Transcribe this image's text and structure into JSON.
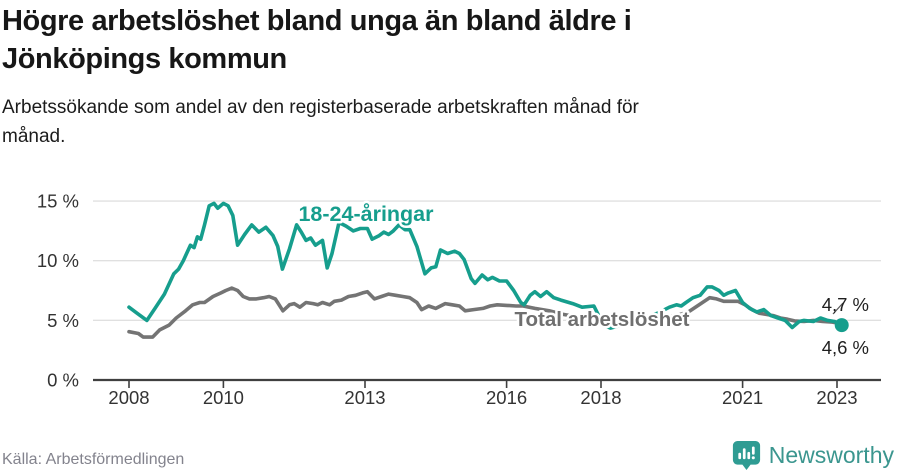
{
  "header": {
    "title_lines": [
      "Högre arbetslöshet bland unga än bland äldre i",
      "Jönköpings kommun"
    ],
    "subtitle_lines": [
      "Arbetssökande som andel av den registerbaserade arbetskraften månad för",
      "månad."
    ]
  },
  "footer": {
    "source": "Källa: Arbetsförmedlingen",
    "brand": "Newsworthy"
  },
  "colors": {
    "youth": "#169E8D",
    "total": "#747474",
    "grid": "#e0e0e0",
    "axis": "#3f3f3f",
    "tick_text": "#333333",
    "end_label_text": "#1f1f1f",
    "brand_bubble": "#2f9c93",
    "brand_text": "#3b968f"
  },
  "chart_data": {
    "type": "line",
    "title": "Högre arbetslöshet bland unga än bland äldre i Jönköpings kommun",
    "subtitle": "Arbetssökande som andel av den registerbaserade arbetskraften månad för månad.",
    "unit": "%",
    "xlabel": "",
    "ylabel": "",
    "ylim": [
      0,
      16
    ],
    "xlim": [
      2007.25,
      2023.9
    ],
    "grid": true,
    "legend_position": "inline-labels",
    "y_ticks": [
      {
        "value": 0,
        "label": "0 %"
      },
      {
        "value": 5,
        "label": "5 %"
      },
      {
        "value": 10,
        "label": "10 %"
      },
      {
        "value": 15,
        "label": "15 %"
      }
    ],
    "x_ticks": [
      {
        "value": 2008,
        "label": "2008"
      },
      {
        "value": 2010,
        "label": "2010"
      },
      {
        "value": 2013,
        "label": "2013"
      },
      {
        "value": 2016,
        "label": "2016"
      },
      {
        "value": 2018,
        "label": "2018"
      },
      {
        "value": 2021,
        "label": "2021"
      },
      {
        "value": 2023,
        "label": "2023"
      }
    ],
    "series": [
      {
        "id": "total",
        "name": "Total arbetslöshet",
        "end_label": "4,7 %",
        "end_value": 4.7,
        "points": [
          [
            2008.0,
            4.05
          ],
          [
            2008.2,
            3.9
          ],
          [
            2008.3,
            3.6
          ],
          [
            2008.5,
            3.6
          ],
          [
            2008.65,
            4.2
          ],
          [
            2008.85,
            4.6
          ],
          [
            2009.0,
            5.2
          ],
          [
            2009.2,
            5.8
          ],
          [
            2009.35,
            6.3
          ],
          [
            2009.5,
            6.5
          ],
          [
            2009.6,
            6.5
          ],
          [
            2009.78,
            7.0
          ],
          [
            2009.95,
            7.3
          ],
          [
            2010.05,
            7.5
          ],
          [
            2010.18,
            7.7
          ],
          [
            2010.3,
            7.5
          ],
          [
            2010.42,
            7.0
          ],
          [
            2010.55,
            6.8
          ],
          [
            2010.7,
            6.8
          ],
          [
            2010.85,
            6.9
          ],
          [
            2010.97,
            7.0
          ],
          [
            2011.1,
            6.8
          ],
          [
            2011.26,
            5.8
          ],
          [
            2011.4,
            6.3
          ],
          [
            2011.5,
            6.4
          ],
          [
            2011.62,
            6.1
          ],
          [
            2011.75,
            6.5
          ],
          [
            2011.9,
            6.4
          ],
          [
            2012.0,
            6.3
          ],
          [
            2012.1,
            6.5
          ],
          [
            2012.25,
            6.3
          ],
          [
            2012.35,
            6.6
          ],
          [
            2012.5,
            6.7
          ],
          [
            2012.65,
            7.0
          ],
          [
            2012.8,
            7.1
          ],
          [
            2012.95,
            7.3
          ],
          [
            2013.05,
            7.4
          ],
          [
            2013.2,
            6.8
          ],
          [
            2013.35,
            7.0
          ],
          [
            2013.5,
            7.2
          ],
          [
            2013.65,
            7.1
          ],
          [
            2013.8,
            7.0
          ],
          [
            2013.95,
            6.9
          ],
          [
            2014.1,
            6.5
          ],
          [
            2014.2,
            5.9
          ],
          [
            2014.35,
            6.2
          ],
          [
            2014.5,
            6.0
          ],
          [
            2014.7,
            6.4
          ],
          [
            2014.85,
            6.3
          ],
          [
            2015.0,
            6.2
          ],
          [
            2015.12,
            5.8
          ],
          [
            2015.3,
            5.9
          ],
          [
            2015.5,
            6.0
          ],
          [
            2015.65,
            6.2
          ],
          [
            2015.8,
            6.3
          ],
          [
            2016.0,
            6.25
          ],
          [
            2016.2,
            6.2
          ],
          [
            2016.35,
            6.2
          ],
          [
            2016.6,
            6.0
          ],
          [
            2016.9,
            5.8
          ],
          [
            2017.2,
            5.5
          ],
          [
            2017.5,
            5.3
          ],
          [
            2017.8,
            5.1
          ],
          [
            2018.1,
            5.0
          ],
          [
            2018.4,
            5.0
          ],
          [
            2018.7,
            5.1
          ],
          [
            2019.0,
            5.1
          ],
          [
            2019.3,
            5.2
          ],
          [
            2019.6,
            5.4
          ],
          [
            2019.85,
            5.7
          ],
          [
            2020.0,
            6.1
          ],
          [
            2020.15,
            6.5
          ],
          [
            2020.3,
            6.9
          ],
          [
            2020.45,
            6.8
          ],
          [
            2020.6,
            6.6
          ],
          [
            2020.75,
            6.6
          ],
          [
            2020.9,
            6.6
          ],
          [
            2021.05,
            6.3
          ],
          [
            2021.2,
            5.9
          ],
          [
            2021.35,
            5.6
          ],
          [
            2021.5,
            5.5
          ],
          [
            2021.65,
            5.4
          ],
          [
            2021.8,
            5.2
          ],
          [
            2021.95,
            5.1
          ],
          [
            2022.1,
            4.95
          ],
          [
            2022.3,
            4.9
          ],
          [
            2022.5,
            5.0
          ],
          [
            2022.7,
            4.9
          ],
          [
            2022.9,
            4.85
          ],
          [
            2023.1,
            4.7
          ]
        ]
      },
      {
        "id": "youth",
        "name": "18-24-åringar",
        "end_label": "4,6 %",
        "end_value": 4.6,
        "points": [
          [
            2008.0,
            6.1
          ],
          [
            2008.17,
            5.6
          ],
          [
            2008.38,
            5.0
          ],
          [
            2008.55,
            6.0
          ],
          [
            2008.75,
            7.2
          ],
          [
            2008.95,
            8.9
          ],
          [
            2009.05,
            9.3
          ],
          [
            2009.15,
            10.0
          ],
          [
            2009.3,
            11.3
          ],
          [
            2009.38,
            11.1
          ],
          [
            2009.45,
            12.0
          ],
          [
            2009.52,
            11.8
          ],
          [
            2009.6,
            13.0
          ],
          [
            2009.7,
            14.6
          ],
          [
            2009.8,
            14.8
          ],
          [
            2009.88,
            14.4
          ],
          [
            2010.0,
            14.8
          ],
          [
            2010.1,
            14.6
          ],
          [
            2010.2,
            13.8
          ],
          [
            2010.3,
            11.3
          ],
          [
            2010.45,
            12.2
          ],
          [
            2010.6,
            13.0
          ],
          [
            2010.75,
            12.4
          ],
          [
            2010.9,
            12.8
          ],
          [
            2011.05,
            12.1
          ],
          [
            2011.15,
            11.2
          ],
          [
            2011.25,
            9.3
          ],
          [
            2011.4,
            11.0
          ],
          [
            2011.55,
            13.0
          ],
          [
            2011.65,
            12.4
          ],
          [
            2011.75,
            11.7
          ],
          [
            2011.85,
            11.9
          ],
          [
            2011.95,
            11.3
          ],
          [
            2012.1,
            11.7
          ],
          [
            2012.2,
            9.4
          ],
          [
            2012.3,
            10.6
          ],
          [
            2012.45,
            13.2
          ],
          [
            2012.6,
            12.9
          ],
          [
            2012.75,
            12.5
          ],
          [
            2012.9,
            12.7
          ],
          [
            2013.05,
            12.7
          ],
          [
            2013.15,
            11.8
          ],
          [
            2013.3,
            12.1
          ],
          [
            2013.4,
            12.4
          ],
          [
            2013.5,
            12.2
          ],
          [
            2013.6,
            12.5
          ],
          [
            2013.72,
            13.0
          ],
          [
            2013.85,
            12.6
          ],
          [
            2013.95,
            12.6
          ],
          [
            2014.1,
            11.2
          ],
          [
            2014.27,
            8.9
          ],
          [
            2014.4,
            9.4
          ],
          [
            2014.5,
            9.5
          ],
          [
            2014.6,
            10.9
          ],
          [
            2014.75,
            10.6
          ],
          [
            2014.9,
            10.8
          ],
          [
            2015.0,
            10.6
          ],
          [
            2015.1,
            10.1
          ],
          [
            2015.25,
            8.5
          ],
          [
            2015.33,
            8.1
          ],
          [
            2015.48,
            8.8
          ],
          [
            2015.6,
            8.4
          ],
          [
            2015.7,
            8.6
          ],
          [
            2015.85,
            8.3
          ],
          [
            2016.0,
            8.3
          ],
          [
            2016.15,
            7.5
          ],
          [
            2016.3,
            6.5
          ],
          [
            2016.37,
            6.3
          ],
          [
            2016.5,
            7.1
          ],
          [
            2016.6,
            7.4
          ],
          [
            2016.72,
            7.0
          ],
          [
            2016.85,
            7.4
          ],
          [
            2017.0,
            6.9
          ],
          [
            2017.15,
            6.7
          ],
          [
            2017.4,
            6.4
          ],
          [
            2017.6,
            6.1
          ],
          [
            2017.85,
            6.2
          ],
          [
            2018.05,
            4.6
          ],
          [
            2018.2,
            4.35
          ],
          [
            2018.35,
            4.5
          ],
          [
            2018.6,
            4.8
          ],
          [
            2018.9,
            5.2
          ],
          [
            2019.2,
            5.6
          ],
          [
            2019.45,
            6.1
          ],
          [
            2019.6,
            6.3
          ],
          [
            2019.7,
            6.2
          ],
          [
            2019.8,
            6.5
          ],
          [
            2019.95,
            6.9
          ],
          [
            2020.1,
            7.1
          ],
          [
            2020.25,
            7.8
          ],
          [
            2020.35,
            7.8
          ],
          [
            2020.5,
            7.5
          ],
          [
            2020.6,
            7.1
          ],
          [
            2020.7,
            7.3
          ],
          [
            2020.85,
            7.5
          ],
          [
            2021.0,
            6.5
          ],
          [
            2021.15,
            6.0
          ],
          [
            2021.3,
            5.7
          ],
          [
            2021.45,
            5.9
          ],
          [
            2021.6,
            5.4
          ],
          [
            2021.75,
            5.2
          ],
          [
            2021.9,
            5.0
          ],
          [
            2022.05,
            4.4
          ],
          [
            2022.2,
            4.9
          ],
          [
            2022.3,
            5.0
          ],
          [
            2022.5,
            4.9
          ],
          [
            2022.65,
            5.2
          ],
          [
            2022.8,
            5.0
          ],
          [
            2022.95,
            4.9
          ],
          [
            2023.1,
            4.6
          ]
        ]
      }
    ]
  }
}
